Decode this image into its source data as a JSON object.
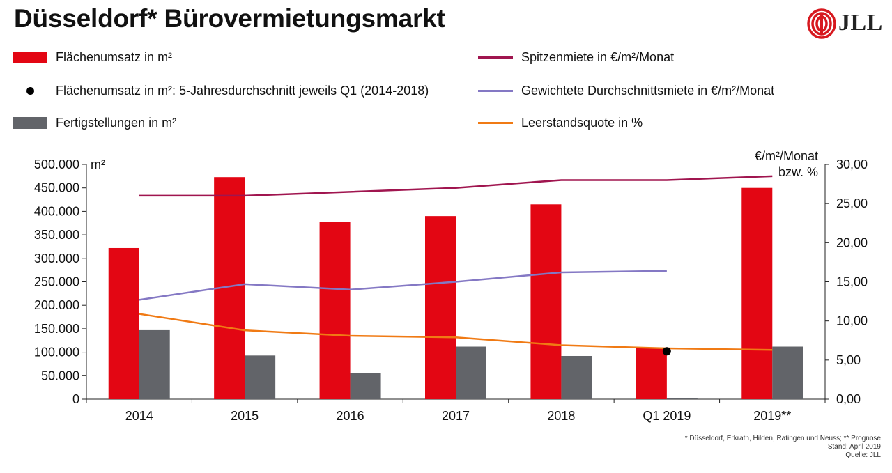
{
  "title": "Düsseldorf* Bürovermietungsmarkt",
  "logo": {
    "text": "JLL",
    "color": "#d7191f"
  },
  "legend": [
    {
      "label": "Flächenumsatz in m²",
      "kind": "rect",
      "color": "#e30613"
    },
    {
      "label": "Flächenumsatz in m²: 5-Jahresdurchschnitt jeweils Q1 (2014-2018)",
      "kind": "dot",
      "color": "#000000"
    },
    {
      "label": "Fertigstellungen in m²",
      "kind": "rect",
      "color": "#626469"
    },
    {
      "label": "Spitzenmiete in €/m²/Monat",
      "kind": "line",
      "color": "#a0154f"
    },
    {
      "label": "Gewichtete Durchschnittsmiete in €/m²/Monat",
      "kind": "line",
      "color": "#8478c4"
    },
    {
      "label": "Leerstandsquote in %",
      "kind": "line",
      "color": "#f07a14"
    }
  ],
  "chart_data": {
    "type": "bar",
    "categories": [
      "2014",
      "2015",
      "2016",
      "2017",
      "2018",
      "Q1 2019",
      "2019**"
    ],
    "left_axis": {
      "unit_label": "m²",
      "range": [
        0,
        500000
      ],
      "ticks": [
        "0",
        "50.000",
        "100.000",
        "150.000",
        "200.000",
        "250.000",
        "300.000",
        "350.000",
        "400.000",
        "450.000",
        "500.000"
      ]
    },
    "right_axis": {
      "unit_label_line1": "€/m²/Monat",
      "unit_label_line2": "bzw. %",
      "range": [
        0,
        30
      ],
      "ticks": [
        "0,00",
        "5,00",
        "10,00",
        "15,00",
        "20,00",
        "25,00",
        "30,00"
      ]
    },
    "bar_series": [
      {
        "name": "Flächenumsatz in m²",
        "color": "#e30613",
        "values": [
          322000,
          473000,
          378000,
          390000,
          415000,
          110000,
          450000
        ]
      },
      {
        "name": "Fertigstellungen in m²",
        "color": "#626469",
        "values": [
          147000,
          93000,
          56000,
          112000,
          92000,
          1500,
          112000
        ]
      }
    ],
    "point_series": [
      {
        "name": "Flächenumsatz in m²: 5-Jahresdurchschnitt jeweils Q1 (2014-2018)",
        "color": "#000000",
        "category": "Q1 2019",
        "value": 102000
      }
    ],
    "line_series": [
      {
        "name": "Spitzenmiete in €/m²/Monat",
        "color": "#a0154f",
        "values": [
          26.0,
          26.0,
          26.5,
          27.0,
          28.0,
          28.0,
          28.5
        ]
      },
      {
        "name": "Gewichtete Durchschnittsmiete in €/m²/Monat",
        "color": "#8478c4",
        "values": [
          12.7,
          14.7,
          14.0,
          15.0,
          16.2,
          16.4,
          null
        ]
      },
      {
        "name": "Leerstandsquote in %",
        "color": "#f07a14",
        "values": [
          10.9,
          8.8,
          8.1,
          7.9,
          6.9,
          6.5,
          6.3
        ]
      }
    ]
  },
  "footnote": [
    "* Düsseldorf, Erkrath, Hilden, Ratingen und Neuss; ** Prognose",
    "Stand: April 2019",
    "Quelle: JLL"
  ]
}
